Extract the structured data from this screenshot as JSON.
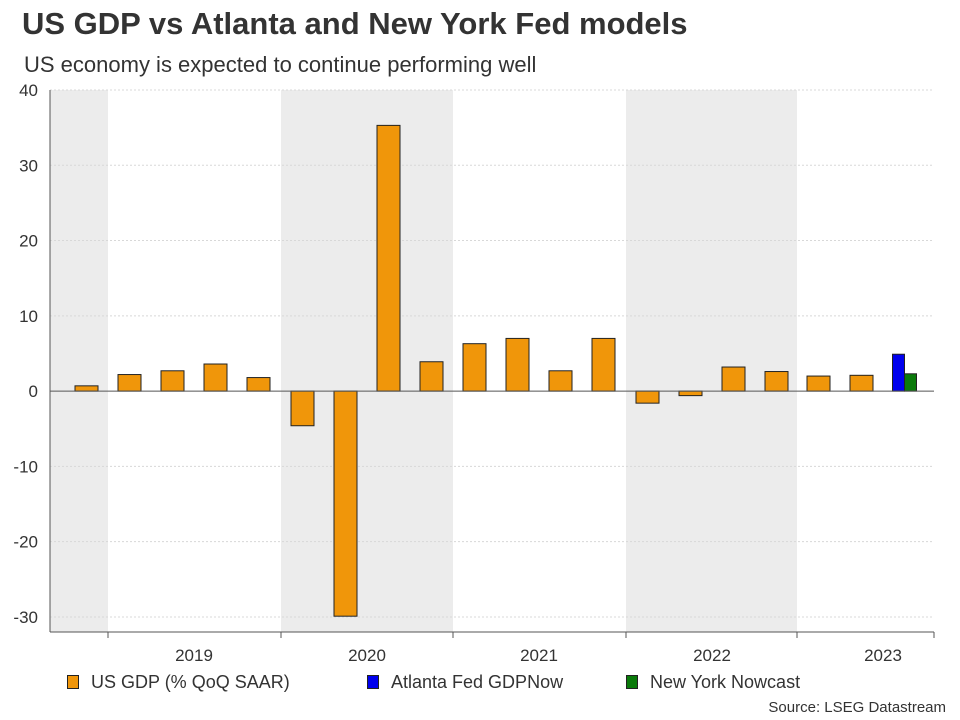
{
  "header": {
    "title": "US GDP vs Atlanta and New York Fed models",
    "subtitle": "US economy is expected to continue performing well"
  },
  "source": "Source: LSEG Datastream",
  "colors": {
    "gdp": "#f0960a",
    "atlanta": "#0000ee",
    "newyork": "#0a7a0a",
    "shade": "#ececec",
    "grid": "#d8d8d8",
    "axis": "#555555",
    "text": "#333333"
  },
  "legend": [
    {
      "label": "US GDP (% QoQ SAAR)",
      "color_key": "gdp"
    },
    {
      "label": "Atlanta Fed GDPNow",
      "color_key": "atlanta"
    },
    {
      "label": "New York Nowcast",
      "color_key": "newyork"
    }
  ],
  "chart_data": {
    "type": "bar",
    "title": "US GDP vs Atlanta and New York Fed models",
    "ylim": [
      -32,
      40
    ],
    "yticks": [
      40,
      30,
      20,
      10,
      0,
      -10,
      -20,
      -30
    ],
    "xlabels": [
      "2019",
      "2020",
      "2021",
      "2022",
      "2023"
    ],
    "shaded_years": [
      "2018",
      "2020",
      "2022"
    ],
    "series": [
      {
        "name": "US GDP (% QoQ SAAR)",
        "color_key": "gdp",
        "quarters": [
          "2018Q4",
          "2019Q1",
          "2019Q2",
          "2019Q3",
          "2019Q4",
          "2020Q1",
          "2020Q2",
          "2020Q3",
          "2020Q4",
          "2021Q1",
          "2021Q2",
          "2021Q3",
          "2021Q4",
          "2022Q1",
          "2022Q2",
          "2022Q3",
          "2022Q4",
          "2023Q1",
          "2023Q2"
        ],
        "values": [
          0.7,
          2.2,
          2.7,
          3.6,
          1.8,
          -4.6,
          -29.9,
          35.3,
          3.9,
          6.3,
          7.0,
          2.7,
          7.0,
          -1.6,
          -0.6,
          3.2,
          2.6,
          2.0,
          2.1
        ]
      },
      {
        "name": "Atlanta Fed GDPNow",
        "color_key": "atlanta",
        "quarters": [
          "2023Q3"
        ],
        "values": [
          4.9
        ]
      },
      {
        "name": "New York Nowcast",
        "color_key": "newyork",
        "quarters": [
          "2023Q3"
        ],
        "values": [
          2.3
        ]
      }
    ]
  }
}
